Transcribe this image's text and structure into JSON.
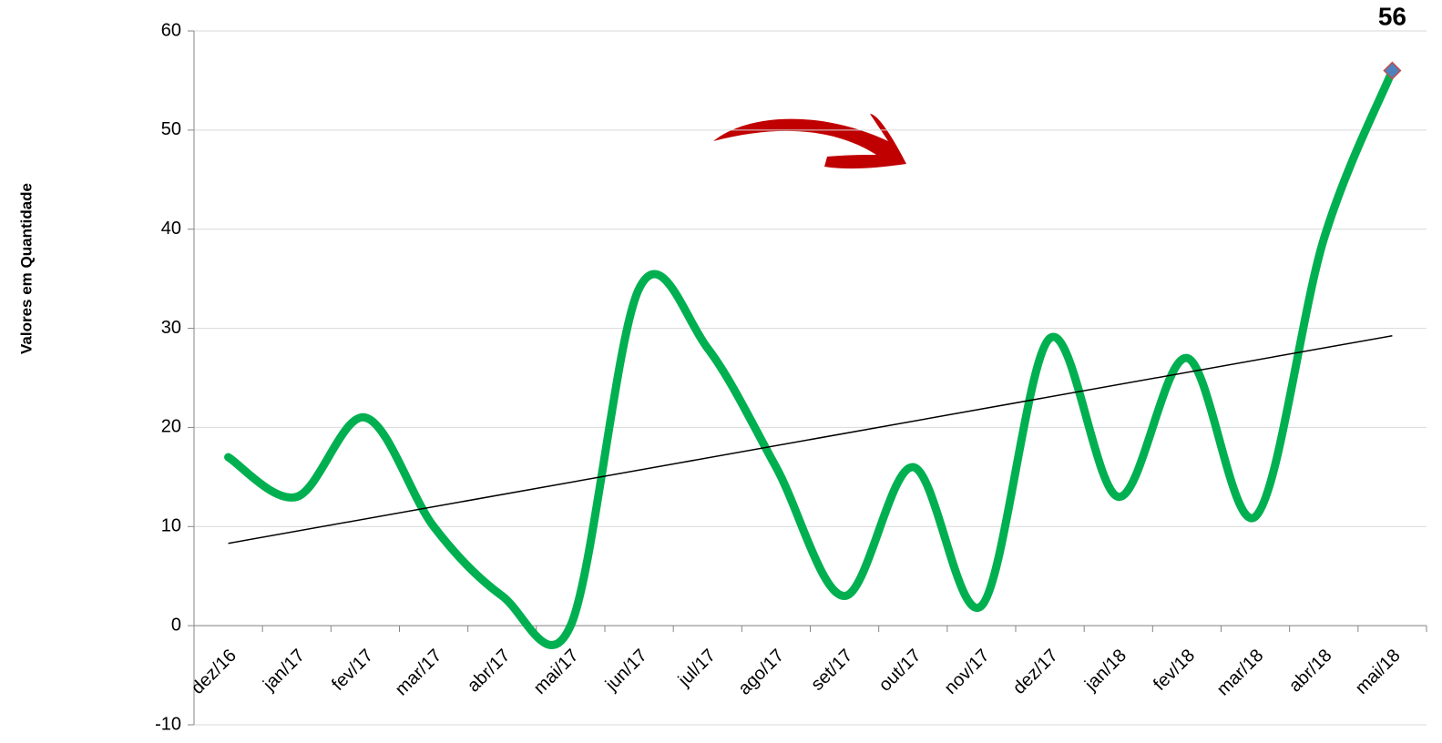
{
  "chart_data": {
    "type": "line",
    "ylabel": "Valores em Quantidade",
    "categories": [
      "dez/16",
      "jan/17",
      "fev/17",
      "mar/17",
      "abr/17",
      "mai/17",
      "jun/17",
      "jul/17",
      "ago/17",
      "set/17",
      "out/17",
      "nov/17",
      "dez/17",
      "jan/18",
      "fev/18",
      "mar/18",
      "abr/18",
      "mai/18"
    ],
    "values": [
      17,
      13,
      21,
      10,
      3,
      0,
      34,
      28,
      16,
      3,
      16,
      2,
      29,
      13,
      27,
      11,
      39,
      56
    ],
    "color": "#00b050",
    "smooth": true,
    "trendline": "linear",
    "trendline_color": "#000000",
    "marker_color": "#4f81bd",
    "marker_edge_color": "#c0504d",
    "ylim": [
      -10,
      60
    ],
    "yticks": [
      -10,
      0,
      10,
      20,
      30,
      40,
      50,
      60
    ],
    "grid": true
  }
}
